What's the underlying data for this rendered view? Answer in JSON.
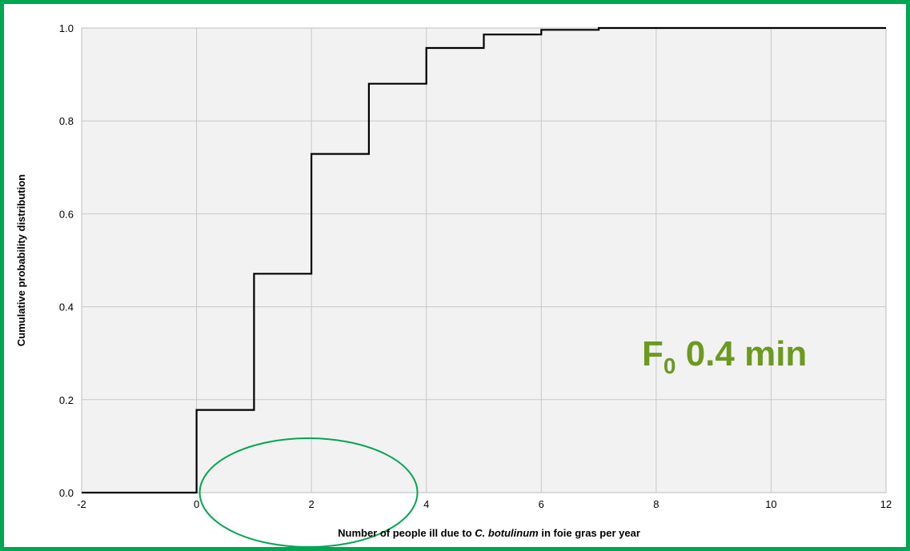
{
  "frame_color": "#00A651",
  "chart_data": {
    "type": "line",
    "step": true,
    "x": [
      -2,
      0,
      0,
      1,
      1,
      2,
      2,
      3,
      3,
      4,
      4,
      5,
      5,
      6,
      6,
      7,
      7,
      12
    ],
    "y": [
      0.0,
      0.0,
      0.178,
      0.178,
      0.471,
      0.471,
      0.729,
      0.729,
      0.88,
      0.88,
      0.957,
      0.957,
      0.986,
      0.986,
      0.996,
      0.996,
      1.0,
      1.0
    ],
    "xlim": [
      -2,
      12
    ],
    "ylim": [
      0,
      1
    ],
    "xticks": [
      -2,
      0,
      2,
      4,
      6,
      8,
      10,
      12
    ],
    "yticks": [
      0,
      0.2,
      0.4,
      0.6,
      0.8,
      1.0
    ],
    "xtick_labels": [
      "-2",
      "0",
      "2",
      "4",
      "6",
      "8",
      "10",
      "12"
    ],
    "ytick_labels": [
      "0.0",
      "0.2",
      "0.4",
      "0.6",
      "0.8",
      "1.0"
    ],
    "xlabel": {
      "before": "Number of people ill due to ",
      "italic": "C. botulinum",
      "after": " in foie gras per year"
    },
    "ylabel": "Cumulative probability distribution",
    "grid": true,
    "plot_background": "#F2F2F2",
    "line_color": "#000000",
    "annotation": {
      "main": "F",
      "subscript": "0",
      "rest": " 0.4 min",
      "color": "#6B9A1F"
    },
    "highlight": {
      "shape": "ellipse",
      "color": "#00A651",
      "center_x": 1.95,
      "center_y": 0.0
    }
  }
}
